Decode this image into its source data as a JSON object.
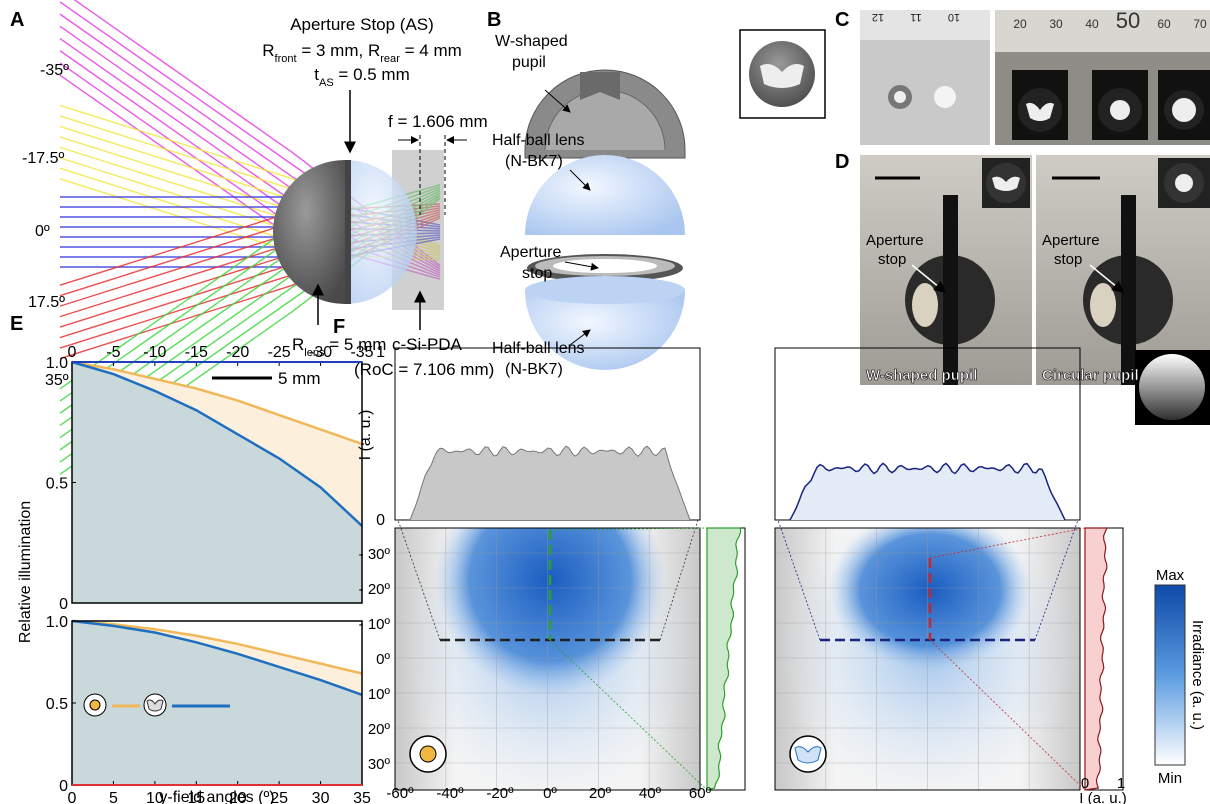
{
  "panels": {
    "A": {
      "letter": "A",
      "field_angles": [
        "-35º",
        "-17.5º",
        "0º",
        "17.5º",
        "35º"
      ],
      "stop_title": "Aperture Stop (AS)",
      "stop_radii": [
        "R",
        "front",
        " = 3 mm, R",
        "rear",
        " = 4 mm"
      ],
      "stop_thickness": [
        "t",
        "AS",
        " = 0.5 mm"
      ],
      "focal": "f = 1.606 mm",
      "lens_radius": [
        "R",
        "lens",
        " = 5 mm"
      ],
      "sensor": "c-Si-PDA",
      "sensor_roc": "(RoC = 7.106 mm)",
      "scale": "5 mm"
    },
    "B": {
      "letter": "B",
      "pupil": [
        "W-shaped",
        "pupil"
      ],
      "lens_top": [
        "Half-ball lens",
        "(N-BK7)"
      ],
      "stop": [
        "Aperture",
        "stop"
      ],
      "lens_bottom": [
        "Half-ball lens",
        "(N-BK7)"
      ]
    },
    "C": {
      "letter": "C",
      "ruler_left": [
        "12",
        "11",
        "10"
      ],
      "ruler_right": [
        "20",
        "30",
        "40",
        "50",
        "60",
        "70"
      ]
    },
    "D": {
      "letter": "D",
      "stop_left": [
        "Aperture",
        "stop"
      ],
      "stop_right": [
        "Aperture",
        "stop"
      ],
      "caption_left": "W-shaped pupil",
      "caption_right": "Circular pupil"
    },
    "E": {
      "letter": "E",
      "ylabel": "Relative illumination",
      "xlabel": "y-field angles (º)"
    },
    "F": {
      "letter": "F",
      "profile_yticks": [
        "1",
        "0"
      ],
      "profile_ylabel": "I (a. u.)",
      "angles_y": [
        "- 30º",
        "- 20º",
        "- 10º",
        "0º",
        "10º",
        "20º",
        "30º"
      ],
      "angles_x": [
        "-60º",
        "-40º",
        "-20º",
        "0º",
        "20º",
        "40º",
        "60º"
      ],
      "side_xticks": [
        "0",
        "1"
      ],
      "side_xlabel": "I (a. u.)",
      "colorbar_max": "Max",
      "colorbar_min": "Min",
      "colorbar_label": "Irradiance (a. u.)"
    }
  },
  "chart_data": [
    {
      "type": "line",
      "x_axis_position": "top",
      "x": [
        0,
        -5,
        -10,
        -15,
        -20,
        -25,
        -30,
        -35
      ],
      "xlim": [
        0,
        -35
      ],
      "xticks": [
        0,
        -5,
        -10,
        -15,
        -20,
        -25,
        -30,
        -35
      ],
      "ylim": [
        0,
        1
      ],
      "yticks": [
        0,
        0.5,
        {
          "value": 1,
          "label": "1.0"
        }
      ],
      "series": [
        {
          "color": "#f0b85a",
          "values": [
            1.0,
            0.97,
            0.93,
            0.89,
            0.84,
            0.78,
            0.72,
            0.66
          ]
        },
        {
          "color": "#1f6fc0",
          "values": [
            1.0,
            0.95,
            0.88,
            0.8,
            0.7,
            0.6,
            0.48,
            0.32
          ]
        }
      ]
    },
    {
      "type": "line",
      "x_axis_position": "bottom",
      "x": [
        0,
        5,
        10,
        15,
        20,
        25,
        30,
        35
      ],
      "xlim": [
        0,
        35
      ],
      "xticks": [
        0,
        5,
        10,
        15,
        20,
        25,
        30,
        35
      ],
      "ylim": [
        0,
        1
      ],
      "yticks": [
        0,
        0.5,
        {
          "value": 1,
          "label": "1.0"
        }
      ],
      "series": [
        {
          "color": "#f0b85a",
          "values": [
            1.0,
            0.98,
            0.95,
            0.91,
            0.86,
            0.8,
            0.74,
            0.68
          ]
        },
        {
          "color": "#1f6fc0",
          "values": [
            1.0,
            0.97,
            0.93,
            0.87,
            0.8,
            0.72,
            0.64,
            0.55
          ]
        }
      ]
    }
  ]
}
